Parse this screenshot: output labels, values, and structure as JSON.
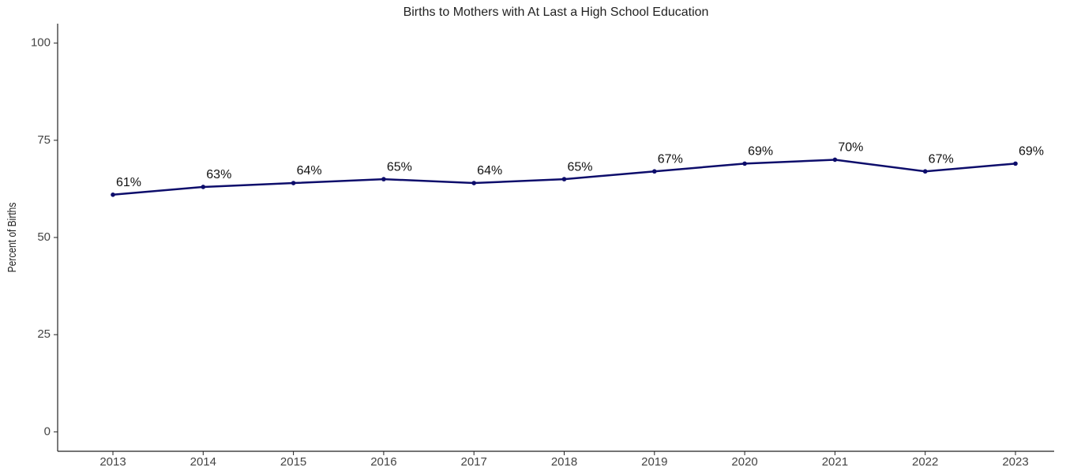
{
  "chart_data": {
    "type": "line",
    "title": "Births to Mothers with At Last a High School Education",
    "y_label": "Percent of Births",
    "categories": [
      "2013",
      "2014",
      "2015",
      "2016",
      "2017",
      "2018",
      "2019",
      "2020",
      "2021",
      "2022",
      "2023"
    ],
    "values": [
      61,
      63,
      64,
      65,
      64,
      65,
      67,
      69,
      70,
      67,
      69
    ],
    "value_labels": [
      "61%",
      "63%",
      "64%",
      "65%",
      "64%",
      "65%",
      "67%",
      "69%",
      "70%",
      "67%",
      "69%"
    ],
    "color": "#0d0d6b",
    "ylim": [
      -5,
      105
    ],
    "yticks": [
      0,
      25,
      50,
      75,
      100
    ],
    "grid": false
  }
}
